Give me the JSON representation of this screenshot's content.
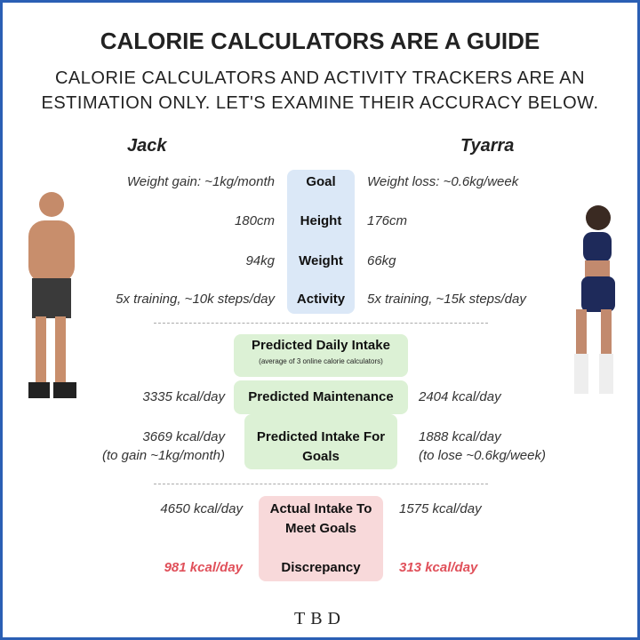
{
  "header": {
    "title": "CALORIE CALCULATORS ARE A GUIDE",
    "subtitle_lines": [
      "CALORIE CALCULATORS AND ACTIVITY TRACKERS ARE AN",
      "ESTIMATION ONLY. LET'S EXAMINE THEIR ACCURACY BELOW."
    ]
  },
  "people": {
    "left": "Jack",
    "right": "Tyarra"
  },
  "profile": {
    "rows": [
      {
        "label": "Goal",
        "left": "Weight gain: ~1kg/month",
        "right": "Weight loss: ~0.6kg/week"
      },
      {
        "label": "Height",
        "left": "180cm",
        "right": "176cm"
      },
      {
        "label": "Weight",
        "left": "94kg",
        "right": "66kg"
      },
      {
        "label": "Activity",
        "left": "5x training, ~10k steps/day",
        "right": "5x training, ~15k steps/day"
      }
    ]
  },
  "predicted": {
    "heading": "Predicted Daily Intake",
    "note": "(average of 3 online calorie calculators)",
    "rows": [
      {
        "label": [
          "Predicted Maintenance"
        ],
        "left": [
          "3335 kcal/day"
        ],
        "right": [
          "2404 kcal/day"
        ]
      },
      {
        "label": [
          "Predicted Intake For",
          "Goals"
        ],
        "left": [
          "3669 kcal/day",
          "(to gain ~1kg/month)"
        ],
        "right": [
          "1888 kcal/day",
          "(to lose ~0.6kg/week)"
        ]
      }
    ]
  },
  "actual": {
    "rows": [
      {
        "label": [
          "Actual Intake To",
          "Meet Goals"
        ],
        "left": "4650 kcal/day",
        "right": "1575 kcal/day"
      },
      {
        "label": [
          "Discrepancy"
        ],
        "left": "981 kcal/day",
        "right": "313 kcal/day"
      }
    ]
  },
  "logo": "TBD"
}
